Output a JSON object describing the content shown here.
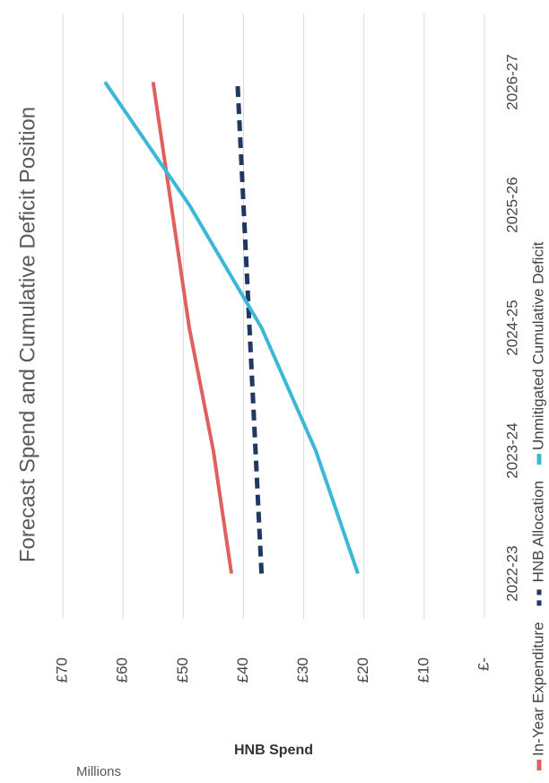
{
  "chart_data": {
    "type": "line",
    "title": "Forecast Spend and Cumulative Deficit Position",
    "y_label": "HNB Spend",
    "y_unit": "Millions",
    "categories": [
      "2022-23",
      "2023-24",
      "2024-25",
      "2025-26",
      "2026-27"
    ],
    "series": [
      {
        "name": "In-Year Expenditure",
        "color": "#e06060",
        "dash": false,
        "values": [
          42,
          45,
          49,
          52,
          55
        ]
      },
      {
        "name": "HNB Allocation",
        "color": "#1f3864",
        "dash": true,
        "values": [
          37,
          38,
          39,
          40,
          41
        ]
      },
      {
        "name": "Unmitigated Cumulative Deficit",
        "color": "#3bb8d6",
        "dash": false,
        "values": [
          21,
          28,
          37,
          49,
          63
        ]
      }
    ],
    "ylim": [
      0,
      70
    ],
    "yticks": [
      {
        "value": 0,
        "label": "£-"
      },
      {
        "value": 10,
        "label": "£10"
      },
      {
        "value": 20,
        "label": "£20"
      },
      {
        "value": 30,
        "label": "£30"
      },
      {
        "value": 40,
        "label": "£40"
      },
      {
        "value": 50,
        "label": "£50"
      },
      {
        "value": 60,
        "label": "£60"
      },
      {
        "value": 70,
        "label": "£70"
      }
    ],
    "grid": true
  }
}
